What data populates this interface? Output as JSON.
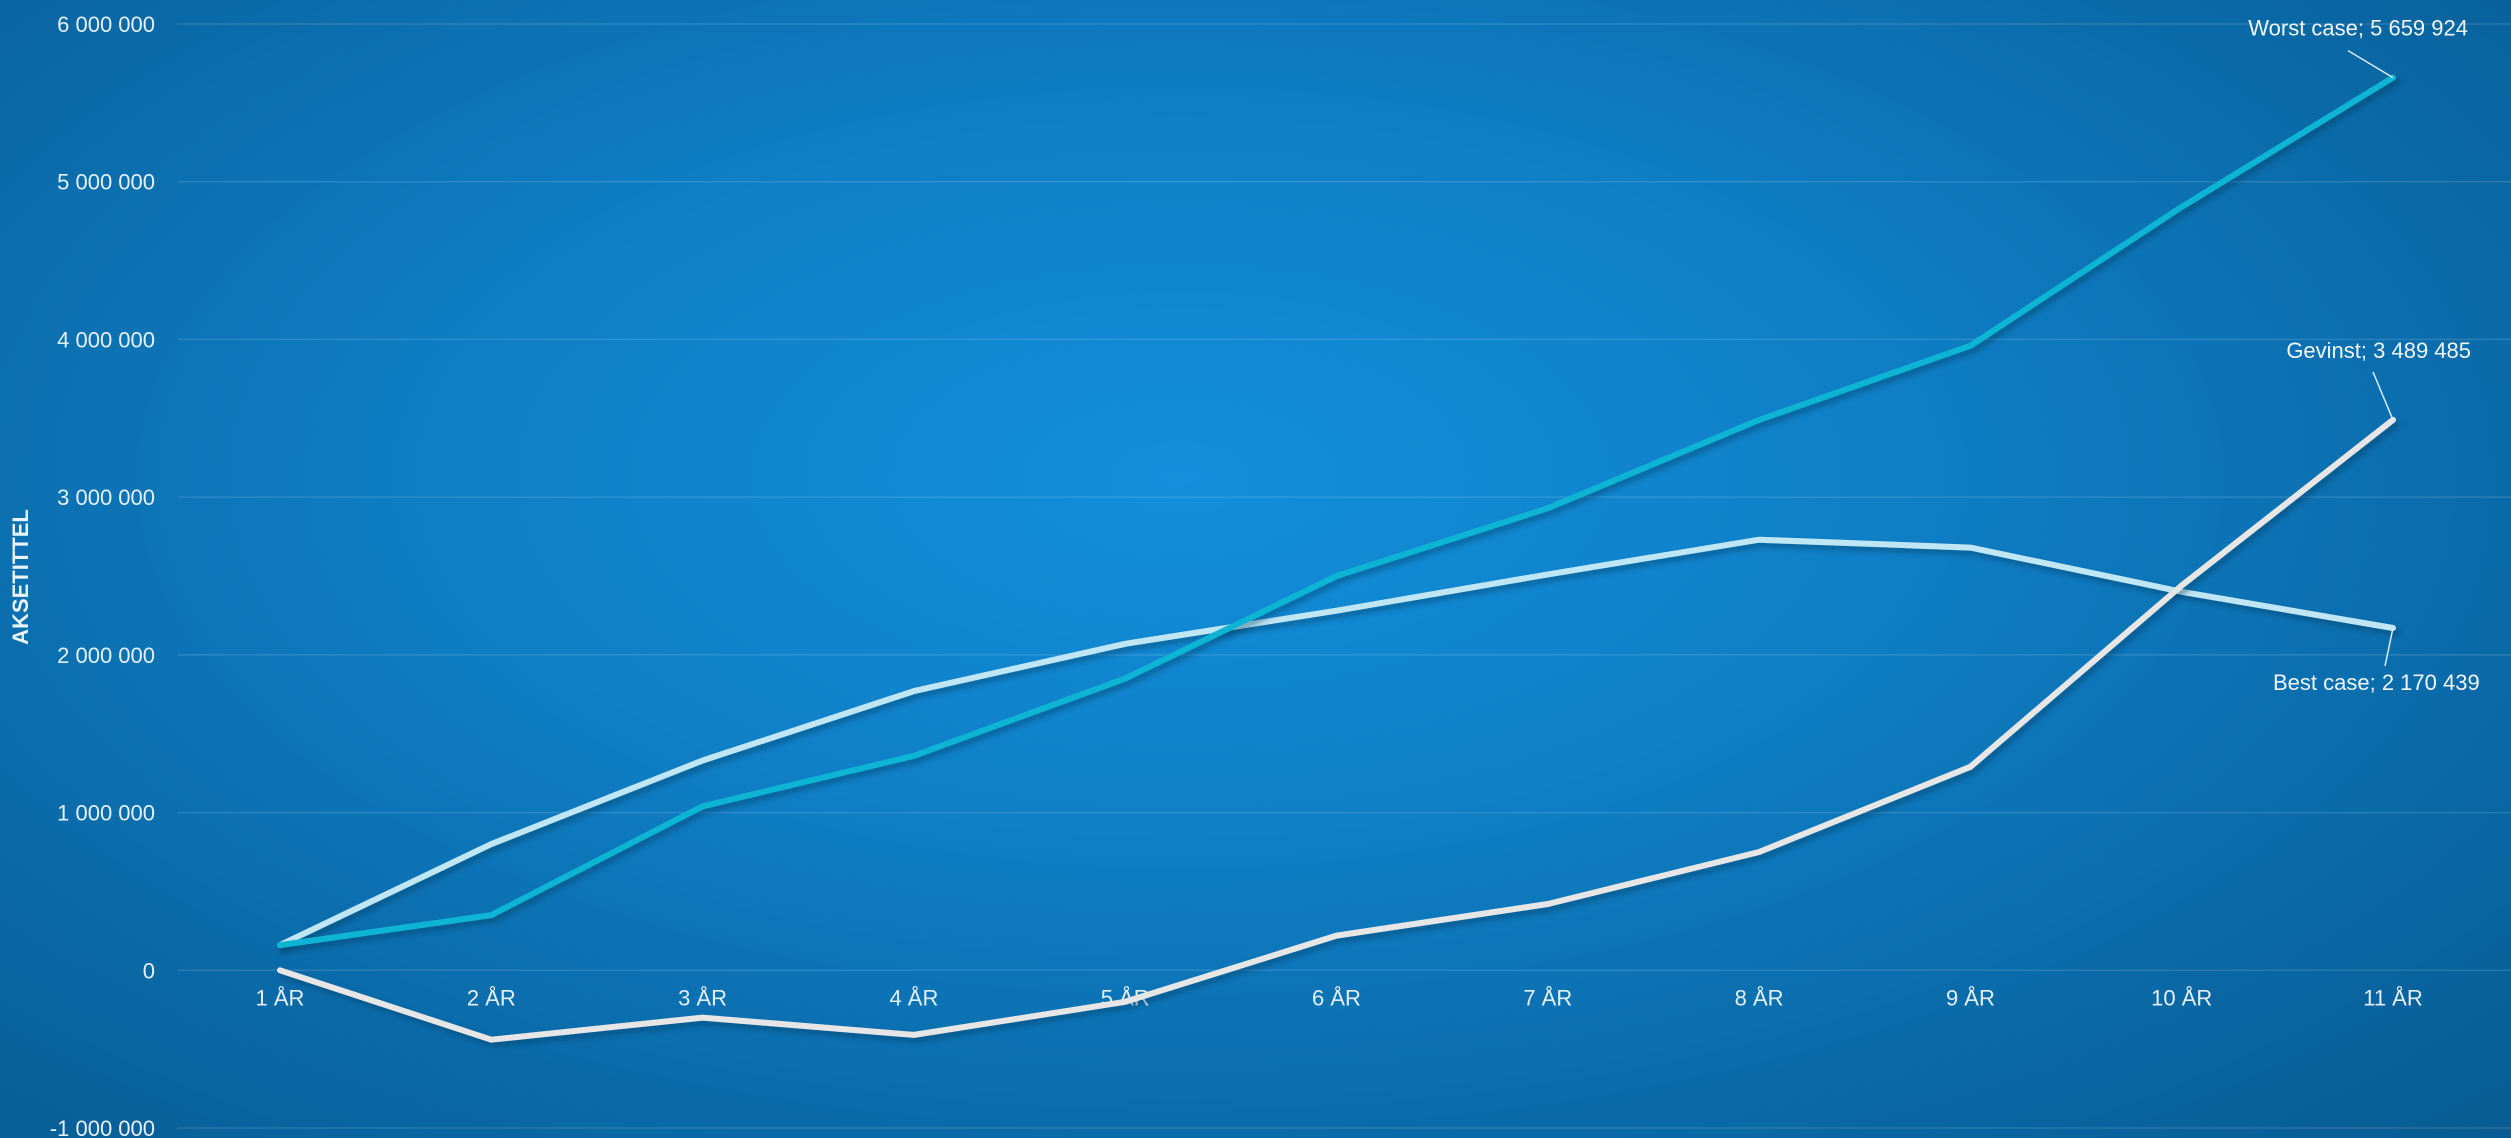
{
  "chart_data": {
    "type": "line",
    "ylabel": "AKSETITTEL",
    "xlabel": "",
    "categories": [
      "1 ÅR",
      "2 ÅR",
      "3 ÅR",
      "4 ÅR",
      "5 ÅR",
      "6 ÅR",
      "7 ÅR",
      "8 ÅR",
      "9 ÅR",
      "10 ÅR",
      "11 ÅR"
    ],
    "ylim": [
      -1000000,
      6000000
    ],
    "yticks": [
      {
        "value": -1000000,
        "label": "-1 000 000"
      },
      {
        "value": 0,
        "label": "0"
      },
      {
        "value": 1000000,
        "label": "1 000 000"
      },
      {
        "value": 2000000,
        "label": "2 000 000"
      },
      {
        "value": 3000000,
        "label": "3 000 000"
      },
      {
        "value": 4000000,
        "label": "4 000 000"
      },
      {
        "value": 5000000,
        "label": "5 000 000"
      },
      {
        "value": 6000000,
        "label": "6 000 000"
      }
    ],
    "grid": true,
    "series": [
      {
        "name": "Best case",
        "color": "#bfe6f4",
        "values": [
          160000,
          800000,
          1330000,
          1770000,
          2070000,
          2280000,
          2510000,
          2730000,
          2680000,
          2400000,
          2170439
        ],
        "end_label": "Best case; 2 170 439"
      },
      {
        "name": "Worst case",
        "color": "#0bb4d4",
        "values": [
          160000,
          350000,
          1040000,
          1360000,
          1850000,
          2500000,
          2930000,
          3490000,
          3960000,
          4840000,
          5659924
        ],
        "end_label": "Worst case; 5 659 924"
      },
      {
        "name": "Gevinst",
        "color": "#e6e6e6",
        "values": [
          0,
          -440000,
          -300000,
          -410000,
          -200000,
          220000,
          420000,
          750000,
          1290000,
          2440000,
          3489485
        ],
        "end_label": "Gevinst; 3 489 485"
      }
    ]
  }
}
